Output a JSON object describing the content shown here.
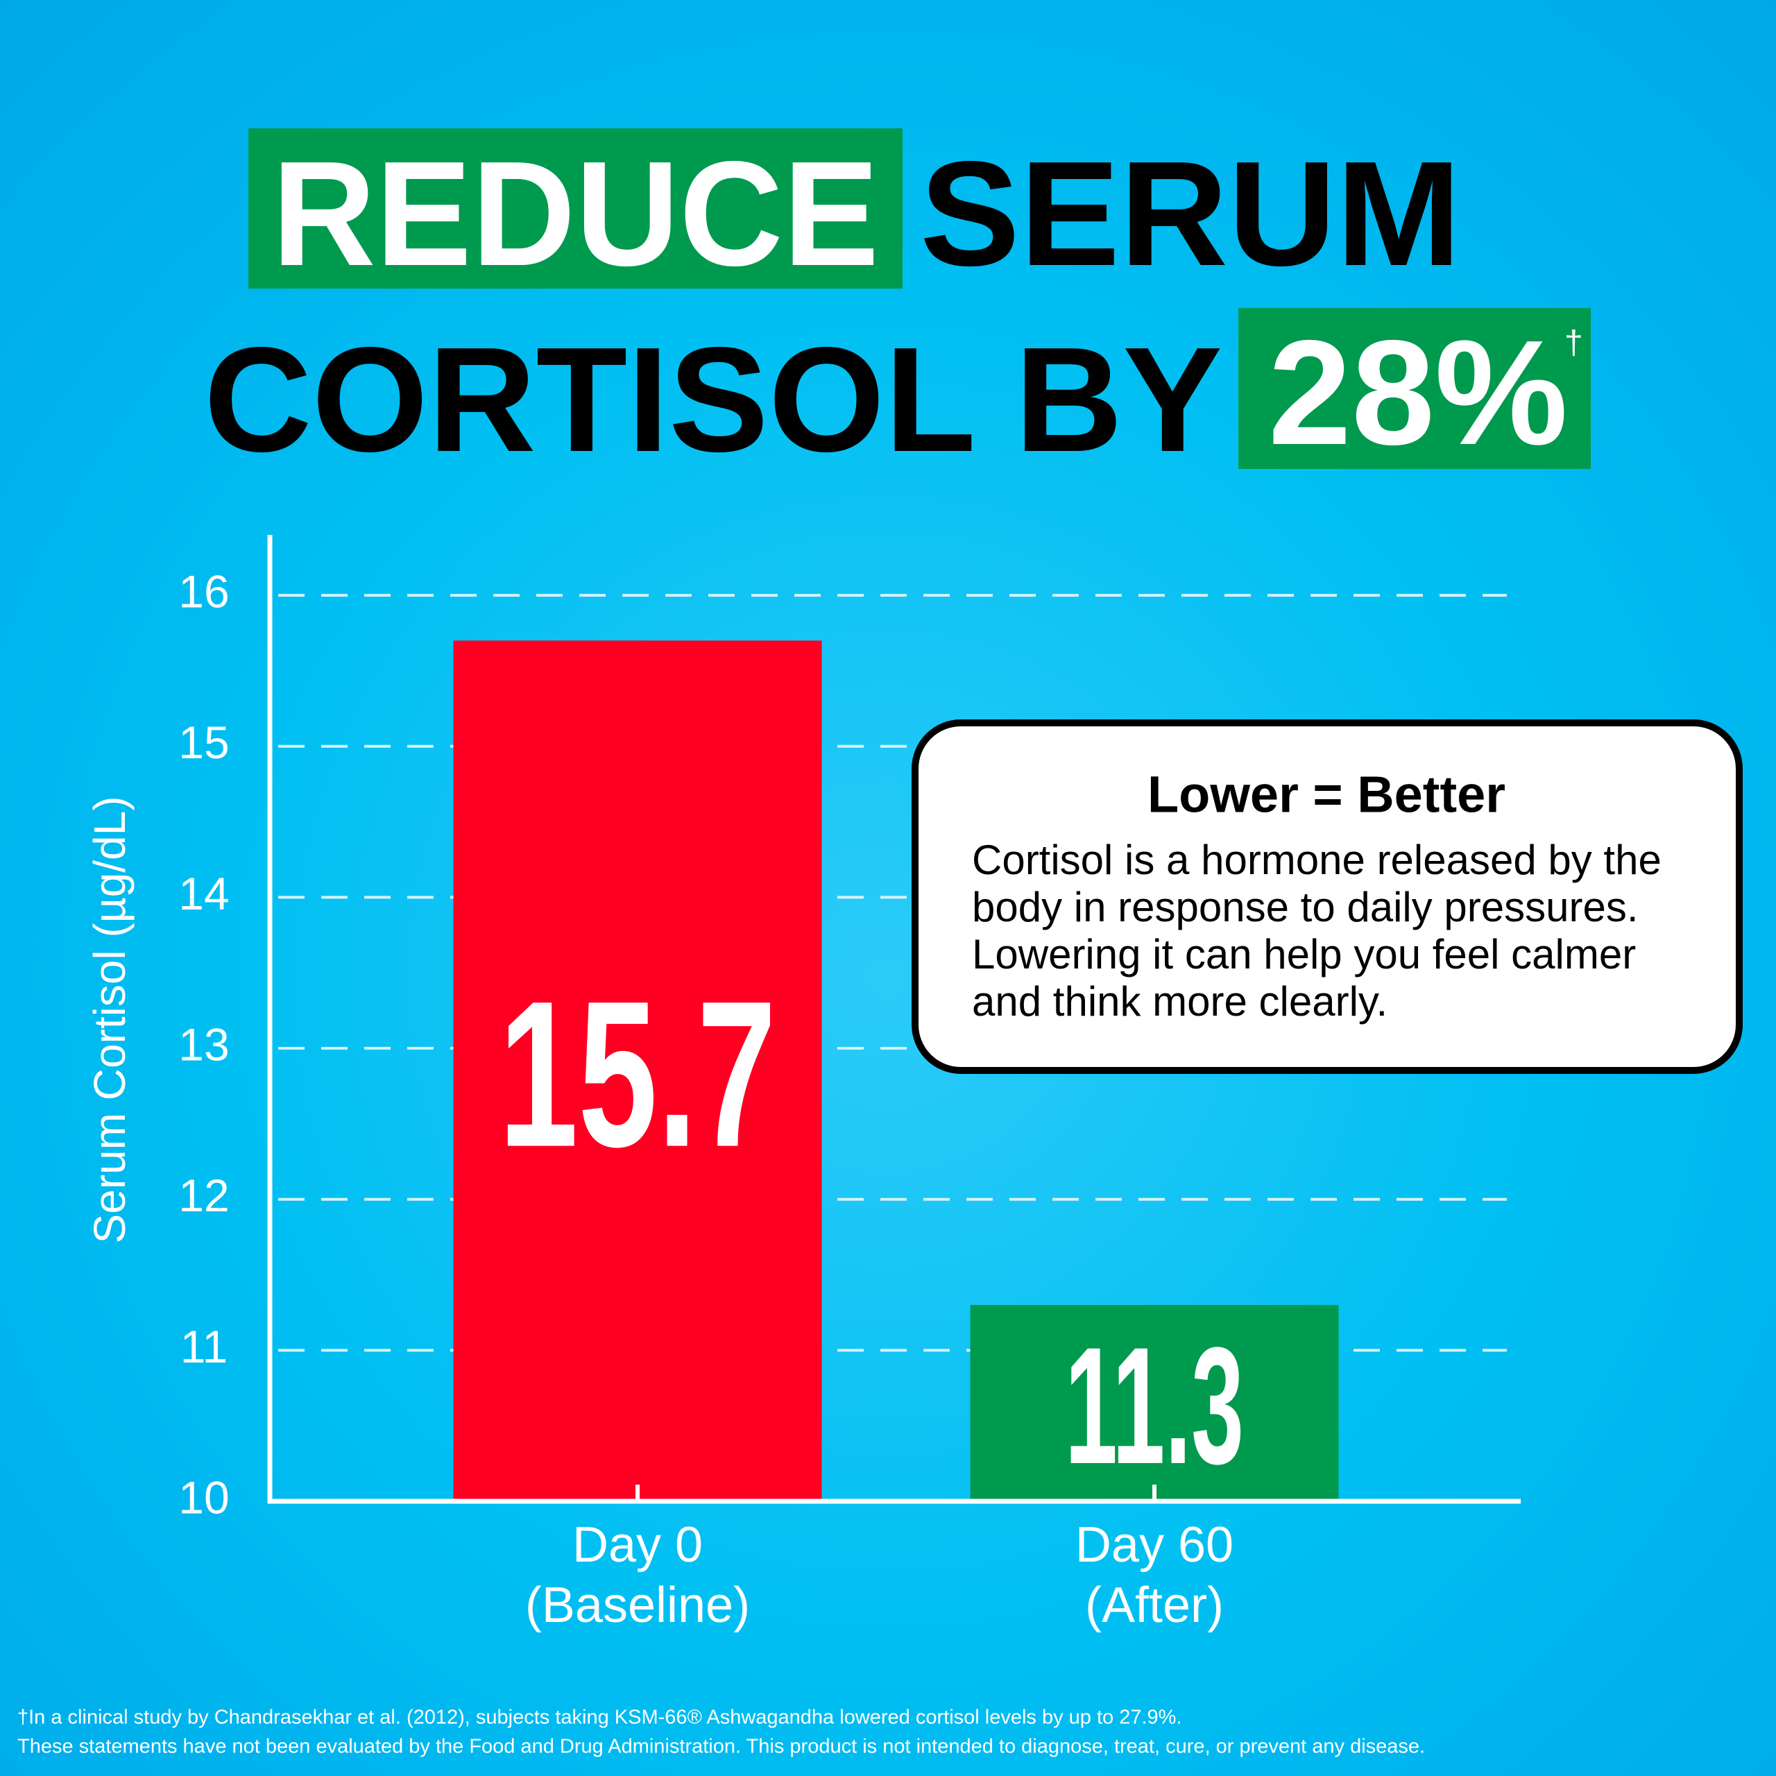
{
  "title": {
    "words": [
      "REDUCE",
      "SERUM",
      "CORTISOL BY",
      "28%"
    ],
    "dagger": "†"
  },
  "chart_data": {
    "type": "bar",
    "categories": [
      "Day 0",
      "Day 60"
    ],
    "category_notes": [
      "(Baseline)",
      "(After)"
    ],
    "values": [
      15.7,
      11.3
    ],
    "colors": [
      "#ff0022",
      "#009a4e"
    ],
    "ylabel": "Serum Cortisol (µg/dL)",
    "ylim": [
      10,
      16.4
    ],
    "yticks": [
      10,
      11,
      12,
      13,
      14,
      15,
      16
    ],
    "grid": true
  },
  "callout": {
    "title": "Lower = Better",
    "lines": [
      "Cortisol is a hormone released by the",
      "body in response to daily pressures.",
      "Lowering it can help you feel calmer",
      "and think more clearly."
    ]
  },
  "footnote": [
    "†In a clinical study by Chandrasekhar et al. (2012), subjects taking KSM-66® Ashwagandha lowered cortisol levels by up to 27.9%.",
    "These statements have not been evaluated by the Food and Drug Administration. This product is not intended to diagnose, treat, cure, or prevent any disease."
  ]
}
